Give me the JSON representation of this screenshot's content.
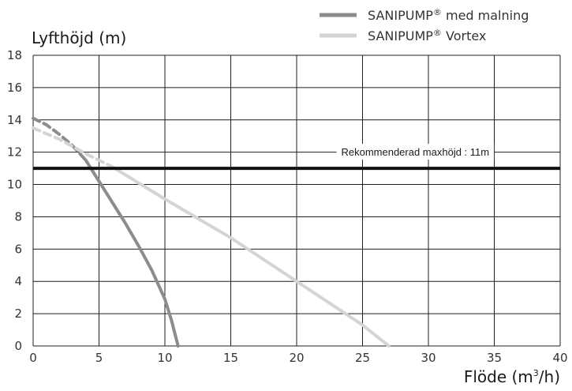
{
  "chart_data": {
    "type": "line",
    "ylabel": "Lyfthöjd (m)",
    "xlabel_main": "Flöde (m",
    "xlabel_sup": "3",
    "xlabel_end": "/h)",
    "xlim": [
      0,
      40
    ],
    "ylim": [
      0,
      18
    ],
    "xticks": [
      0,
      5,
      10,
      15,
      20,
      25,
      30,
      35,
      40
    ],
    "yticks": [
      0,
      2,
      4,
      6,
      8,
      10,
      12,
      14,
      16,
      18
    ],
    "grid": true,
    "legend_position": "top-right",
    "series": [
      {
        "name_main": "SANIPUMP",
        "name_sup": "®",
        "name_rest": " med malning",
        "color": "#8c8c8c",
        "dashed_segment": [
          [
            0,
            14.1
          ],
          [
            1,
            13.7
          ],
          [
            2,
            13.1
          ],
          [
            3,
            12.4
          ],
          [
            4,
            11.5
          ]
        ],
        "solid_segment": [
          [
            4,
            11.5
          ],
          [
            5,
            10.2
          ],
          [
            6,
            8.9
          ],
          [
            7,
            7.6
          ],
          [
            8,
            6.2
          ],
          [
            9,
            4.7
          ],
          [
            10,
            2.9
          ],
          [
            10.5,
            1.6
          ],
          [
            11,
            0
          ]
        ]
      },
      {
        "name_main": "SANIPUMP",
        "name_sup": "®",
        "name_rest": " Vortex",
        "color": "#d4d4d4",
        "dashed_segment": [
          [
            0,
            13.5
          ],
          [
            2,
            12.8
          ],
          [
            4,
            11.9
          ],
          [
            6,
            11.1
          ]
        ],
        "solid_segment": [
          [
            6,
            11.1
          ],
          [
            10,
            9.1
          ],
          [
            15,
            6.7
          ],
          [
            20,
            4.0
          ],
          [
            25,
            1.3
          ],
          [
            27,
            0
          ]
        ]
      }
    ],
    "reference_line": {
      "y": 11,
      "label": "Rekommenderad maxhöjd : 11m",
      "color": "#111111"
    }
  }
}
